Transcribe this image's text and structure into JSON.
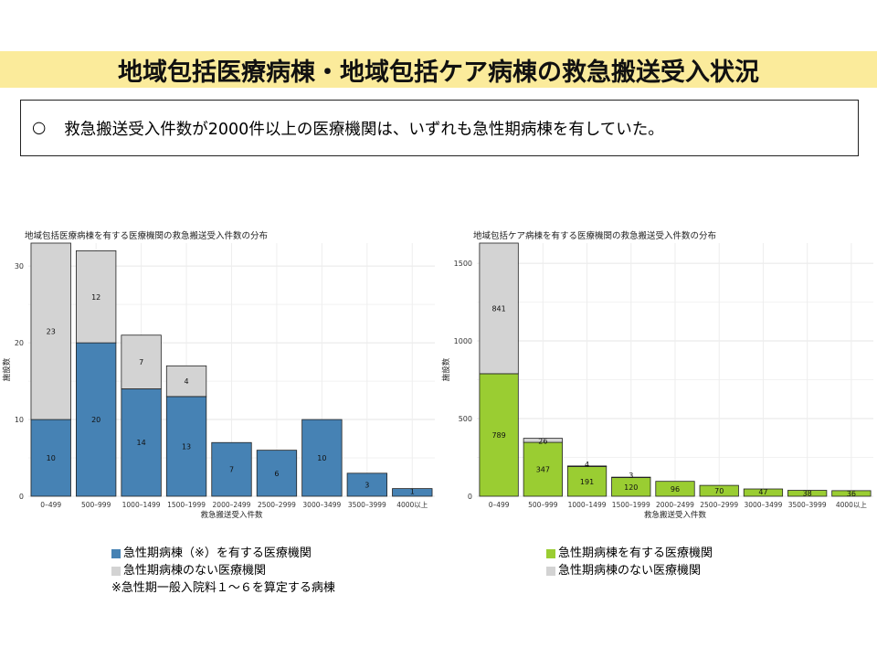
{
  "page": {
    "title": "地域包括医療病棟・地域包括ケア病棟の救急搬送受入状況",
    "summary_bullet": "○",
    "summary_text": "救急搬送受入件数が2000件以上の医療機関は、いずれも急性期病棟を有していた。"
  },
  "colors": {
    "blue": "#4682b4",
    "green": "#9acd32",
    "gray": "#d3d3d3"
  },
  "left_legend": {
    "items": [
      "急性期病棟（※）を有する医療機関",
      "急性期病棟のない医療機関"
    ],
    "note": "※急性期一般入院料１～６を算定する病棟"
  },
  "right_legend": {
    "items": [
      "急性期病棟を有する医療機関",
      "急性期病棟のない医療機関"
    ]
  },
  "chart_data": [
    {
      "type": "bar",
      "stacked": true,
      "title": "地域包括医療病棟を有する医療機関の救急搬送受入件数の分布",
      "xlabel": "救急搬送受入件数",
      "ylabel": "施設数",
      "ylim": [
        0,
        33
      ],
      "yticks": [
        0,
        10,
        20,
        30
      ],
      "grid": true,
      "categories": [
        "0–499",
        "500–999",
        "1000–1499",
        "1500–1999",
        "2000–2499",
        "2500–2999",
        "3000–3499",
        "3500–3999",
        "4000以上"
      ],
      "series": [
        {
          "name": "急性期病棟（※）を有する医療機関",
          "color": "#4682b4",
          "values": [
            10,
            20,
            14,
            13,
            7,
            6,
            10,
            3,
            1
          ]
        },
        {
          "name": "急性期病棟のない医療機関",
          "color": "#d3d3d3",
          "values": [
            23,
            12,
            7,
            4,
            0,
            0,
            0,
            0,
            0
          ]
        }
      ]
    },
    {
      "type": "bar",
      "stacked": true,
      "title": "地域包括ケア病棟を有する医療機関の救急搬送受入件数の分布",
      "xlabel": "救急搬送受入件数",
      "ylabel": "施設数",
      "ylim": [
        0,
        1630
      ],
      "yticks": [
        0,
        500,
        1000,
        1500
      ],
      "grid": true,
      "categories": [
        "0–499",
        "500–999",
        "1000–1499",
        "1500–1999",
        "2000–2499",
        "2500–2999",
        "3000–3499",
        "3500–3999",
        "4000以上"
      ],
      "series": [
        {
          "name": "急性期病棟を有する医療機関",
          "color": "#9acd32",
          "values": [
            789,
            347,
            191,
            120,
            96,
            70,
            47,
            38,
            36
          ]
        },
        {
          "name": "急性期病棟のない医療機関",
          "color": "#d3d3d3",
          "values": [
            841,
            26,
            4,
            3,
            0,
            0,
            0,
            0,
            0
          ]
        }
      ]
    }
  ]
}
